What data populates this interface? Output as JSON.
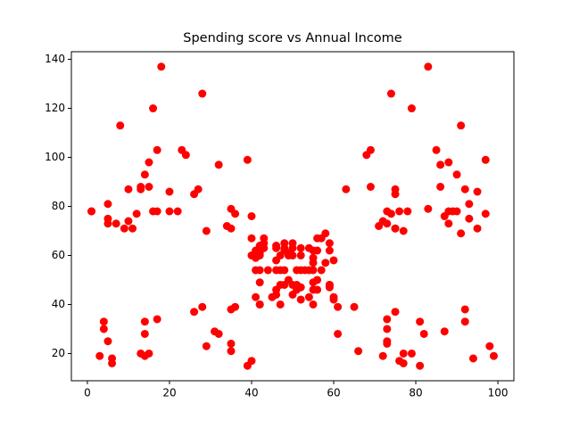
{
  "chart_data": {
    "type": "scatter",
    "title": "Spending score vs Annual Income",
    "x": [
      39,
      81,
      6,
      77,
      40,
      76,
      6,
      94,
      3,
      72,
      14,
      99,
      15,
      77,
      13,
      79,
      35,
      66,
      29,
      98,
      35,
      73,
      5,
      73,
      14,
      82,
      32,
      61,
      31,
      87,
      4,
      73,
      4,
      92,
      14,
      81,
      17,
      73,
      26,
      75,
      35,
      92,
      36,
      61,
      28,
      65,
      55,
      47,
      42,
      42,
      52,
      60,
      54,
      60,
      45,
      41,
      50,
      46,
      51,
      46,
      56,
      55,
      52,
      59,
      51,
      59,
      50,
      48,
      59,
      47,
      55,
      42,
      49,
      56,
      47,
      54,
      53,
      48,
      52,
      42,
      51,
      55,
      41,
      44,
      57,
      46,
      58,
      55,
      60,
      46,
      55,
      41,
      49,
      40,
      42,
      52,
      47,
      50,
      42,
      49,
      41,
      48,
      59,
      55,
      56,
      42,
      50,
      46,
      43,
      48,
      52,
      54,
      42,
      46,
      48,
      50,
      43,
      59,
      43,
      57,
      56,
      40,
      58,
      91,
      29,
      77,
      35,
      95,
      11,
      75,
      9,
      75,
      34,
      71,
      5,
      88,
      7,
      73,
      10,
      72,
      5,
      93,
      40,
      87,
      12,
      97,
      36,
      74,
      22,
      90,
      17,
      88,
      20,
      76,
      16,
      89,
      1,
      78,
      1,
      73,
      35,
      83,
      5,
      93,
      26,
      75,
      20,
      95,
      27,
      63,
      13,
      75,
      10,
      92,
      13,
      86,
      15,
      69,
      14,
      90,
      32,
      86,
      15,
      88,
      39,
      97,
      24,
      68,
      17,
      85,
      23,
      69,
      8,
      91,
      16,
      79,
      28,
      74,
      18,
      83
    ],
    "series": [
      {
        "color": "#ff0000",
        "values": [
          15,
          15,
          16,
          16,
          17,
          17,
          18,
          18,
          19,
          19,
          19,
          19,
          20,
          20,
          20,
          20,
          21,
          21,
          23,
          23,
          24,
          24,
          25,
          25,
          28,
          28,
          28,
          28,
          29,
          29,
          30,
          30,
          33,
          33,
          33,
          33,
          34,
          34,
          37,
          37,
          38,
          38,
          39,
          39,
          39,
          39,
          40,
          40,
          40,
          40,
          42,
          42,
          43,
          43,
          43,
          43,
          44,
          44,
          46,
          46,
          46,
          46,
          47,
          47,
          48,
          48,
          48,
          48,
          48,
          48,
          49,
          49,
          50,
          50,
          54,
          54,
          54,
          54,
          54,
          54,
          54,
          54,
          54,
          54,
          54,
          54,
          57,
          57,
          58,
          58,
          59,
          59,
          60,
          60,
          60,
          60,
          60,
          60,
          61,
          61,
          62,
          62,
          62,
          62,
          62,
          62,
          63,
          63,
          63,
          63,
          63,
          63,
          64,
          64,
          65,
          65,
          65,
          65,
          67,
          67,
          67,
          67,
          69,
          69,
          70,
          70,
          71,
          71,
          71,
          71,
          71,
          71,
          72,
          72,
          73,
          73,
          73,
          73,
          74,
          74,
          75,
          75,
          76,
          76,
          77,
          77,
          77,
          77,
          78,
          78,
          78,
          78,
          78,
          78,
          78,
          78,
          78,
          78,
          78,
          78,
          79,
          79,
          81,
          81,
          85,
          85,
          86,
          86,
          87,
          87,
          87,
          87,
          87,
          87,
          88,
          88,
          88,
          88,
          93,
          93,
          97,
          97,
          98,
          98,
          99,
          99,
          101,
          101,
          103,
          103,
          103,
          103,
          113,
          113,
          120,
          120,
          126,
          126,
          137,
          137
        ]
      }
    ],
    "xlim": [
      -3.9,
      103.9
    ],
    "ylim": [
      8.9,
      143.1
    ],
    "xticks": [
      0,
      20,
      40,
      60,
      80,
      100
    ],
    "yticks": [
      20,
      40,
      60,
      80,
      100,
      120,
      140
    ]
  }
}
